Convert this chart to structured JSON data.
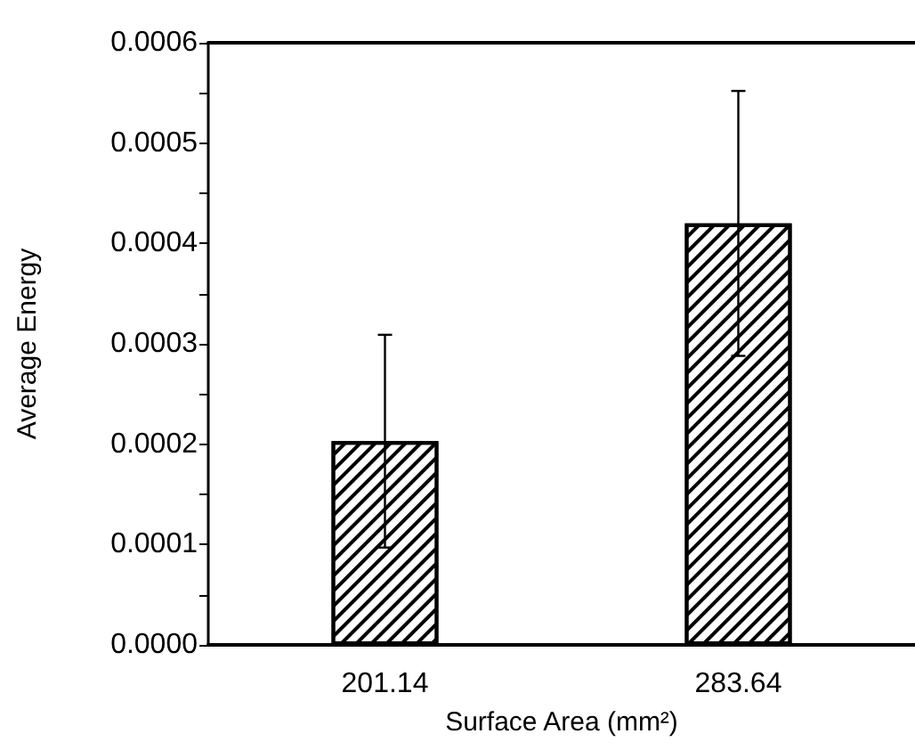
{
  "chart_data": {
    "type": "bar",
    "xlabel": "Surface Area (mm²)",
    "ylabel": "Average Energy",
    "categories": [
      "201.14",
      "283.64"
    ],
    "values": [
      0.000203,
      0.00042
    ],
    "errors": [
      0.000106,
      0.000132
    ],
    "color": "#ffffff",
    "ylim": [
      0,
      0.0006
    ],
    "yticks": [
      {
        "value": 0,
        "label": "0.0000"
      },
      {
        "value": 5e-05,
        "label": null
      },
      {
        "value": 0.0001,
        "label": "0.0001"
      },
      {
        "value": 0.00015,
        "label": null
      },
      {
        "value": 0.0002,
        "label": "0.0002"
      },
      {
        "value": 0.00025,
        "label": null
      },
      {
        "value": 0.0003,
        "label": "0.0003"
      },
      {
        "value": 0.00035,
        "label": null
      },
      {
        "value": 0.0004,
        "label": "0.0004"
      },
      {
        "value": 0.00045,
        "label": null
      },
      {
        "value": 0.0005,
        "label": "0.0005"
      },
      {
        "value": 0.00055,
        "label": null
      },
      {
        "value": 0.0006,
        "label": "0.0006"
      }
    ],
    "grid": false
  }
}
